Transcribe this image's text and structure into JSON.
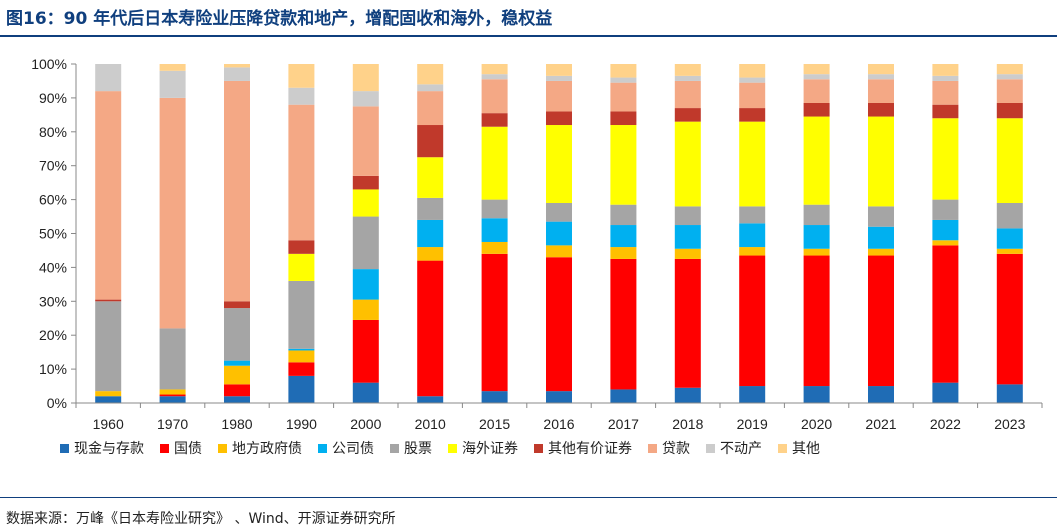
{
  "title": "图16：90 年代后日本寿险业压降贷款和地产，增配固收和海外，稳权益",
  "source": "数据来源：万峰《日本寿险业研究》 、Wind、开源证券研究所",
  "chart_data": {
    "type": "bar",
    "stacked": true,
    "normalized": true,
    "categories": [
      "1960",
      "1970",
      "1980",
      "1990",
      "2000",
      "2010",
      "2015",
      "2016",
      "2017",
      "2018",
      "2019",
      "2020",
      "2021",
      "2022",
      "2023"
    ],
    "ylim": [
      0,
      100
    ],
    "yticks": [
      "0%",
      "10%",
      "20%",
      "30%",
      "40%",
      "50%",
      "60%",
      "70%",
      "80%",
      "90%",
      "100%"
    ],
    "legend_position": "bottom",
    "grid": false,
    "series": [
      {
        "name": "现金与存款",
        "color": "#1f6cb5",
        "values": [
          2,
          2,
          2,
          8,
          6,
          2,
          3.5,
          3.5,
          4,
          4.5,
          5,
          5,
          5,
          6,
          5.5
        ]
      },
      {
        "name": "国债",
        "color": "#ff0000",
        "values": [
          0,
          0.5,
          3.5,
          4,
          18.5,
          40,
          40.5,
          39.5,
          38.5,
          38,
          38.5,
          38.5,
          38.5,
          40.5,
          38.5
        ]
      },
      {
        "name": "地方政府债",
        "color": "#ffc000",
        "values": [
          1.5,
          1.5,
          5.5,
          3.5,
          6,
          4,
          3.5,
          3.5,
          3.5,
          3,
          2.5,
          2,
          2,
          1.5,
          1.5
        ]
      },
      {
        "name": "公司债",
        "color": "#00b0f0",
        "values": [
          0,
          0,
          1.5,
          0.5,
          9,
          8,
          7,
          7,
          6.5,
          7,
          7,
          7,
          6.5,
          6,
          6
        ]
      },
      {
        "name": "股票",
        "color": "#a5a5a5",
        "values": [
          26.5,
          18,
          15.5,
          20,
          15.5,
          6.5,
          5.5,
          5.5,
          6,
          5.5,
          5,
          6,
          6,
          6,
          7.5
        ]
      },
      {
        "name": "海外证券",
        "color": "#ffff00",
        "values": [
          0,
          0,
          0,
          8,
          8,
          12,
          21.5,
          23,
          23.5,
          25,
          25,
          26,
          26.5,
          24,
          25
        ]
      },
      {
        "name": "其他有价证券",
        "color": "#c0392b",
        "values": [
          0.5,
          0,
          2,
          4,
          4,
          9.5,
          4,
          4,
          4,
          4,
          4,
          4,
          4,
          4,
          4.5
        ]
      },
      {
        "name": "贷款",
        "color": "#f4a885",
        "values": [
          61.5,
          68,
          65,
          40,
          20.5,
          10,
          10,
          9,
          8.5,
          8,
          7.5,
          7,
          7,
          7,
          7
        ]
      },
      {
        "name": "不动产",
        "color": "#cccccc",
        "values": [
          8,
          8,
          4,
          5,
          4.5,
          2,
          1.5,
          1.5,
          1.5,
          1.5,
          1.5,
          1.5,
          1.5,
          1.5,
          1.5
        ]
      },
      {
        "name": "其他",
        "color": "#ffd28a",
        "values": [
          0,
          2,
          1,
          7,
          8,
          6,
          3,
          3.5,
          4,
          3.5,
          4,
          3,
          3,
          3.5,
          3
        ]
      }
    ]
  }
}
